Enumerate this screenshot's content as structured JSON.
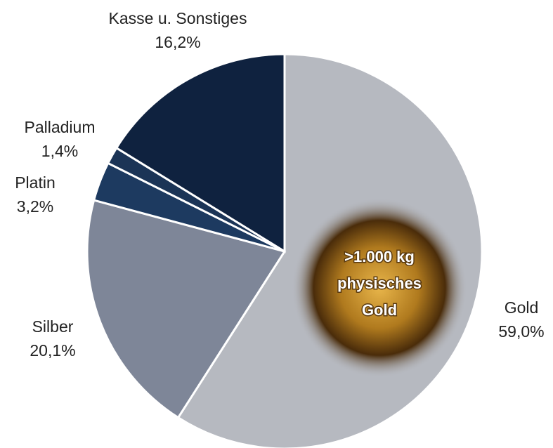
{
  "chart_data": {
    "type": "pie",
    "categories": [
      "Gold",
      "Silber",
      "Platin",
      "Palladium",
      "Kasse u. Sonstiges"
    ],
    "values": [
      59.0,
      20.1,
      3.2,
      1.4,
      16.2
    ],
    "value_labels": [
      "59,0%",
      "20,1%",
      "3,2%",
      "1,4%",
      "16,2%"
    ],
    "colors": [
      "#b6b9c0",
      "#7e8698",
      "#1d3a60",
      "#1b3456",
      "#0f223f"
    ],
    "annotation": [
      ">1.000 kg",
      "physisches",
      "Gold"
    ]
  }
}
